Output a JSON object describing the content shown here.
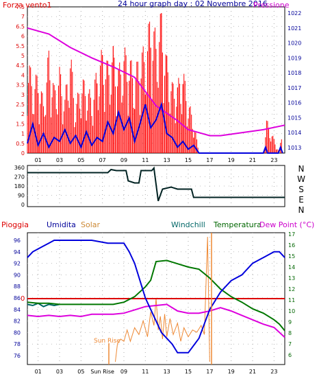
{
  "wind_pressure_chart": {
    "type": "line",
    "title": "24 hour graph day : 02 Novembre 2016",
    "left_label": "Forza vento1",
    "right_label": "Pressione",
    "left_ticks": [
      "7.5",
      "7",
      "6.5",
      "6",
      "5.5",
      "5",
      "4.5",
      "4",
      "3.5",
      "3",
      "2.5",
      "2",
      "1.5",
      "1",
      "0.5",
      "0"
    ],
    "right_ticks": [
      "1022",
      "1021",
      "1020",
      "1019",
      "1018",
      "1017",
      "1016",
      "1015",
      "1014",
      "1013"
    ],
    "x_ticks": [
      "01",
      "03",
      "05",
      "07",
      "09",
      "11",
      "13",
      "15",
      "17",
      "19",
      "21",
      "23"
    ],
    "colors": {
      "gust": "#ff0000",
      "wind": "#0000dd",
      "pressure": "#dd00dd"
    },
    "pressure": {
      "x": [
        0,
        2,
        4,
        6,
        8,
        10,
        12,
        14,
        15,
        16,
        17,
        18,
        20,
        22,
        24
      ],
      "y": [
        1021,
        1020.6,
        1019.7,
        1019.0,
        1018.4,
        1017.7,
        1015.8,
        1014.8,
        1014.2,
        1014.0,
        1013.8,
        1013.8,
        1014.0,
        1014.2,
        1014.5
      ]
    },
    "wind": {
      "x": [
        0,
        0.5,
        1,
        1.5,
        2,
        2.5,
        3,
        3.5,
        4,
        4.5,
        5,
        5.5,
        6,
        6.5,
        7,
        7.5,
        8,
        8.5,
        9,
        9.5,
        10,
        10.5,
        11,
        11.5,
        12,
        12.5,
        13,
        13.5,
        14,
        14.5,
        15,
        15.5,
        16,
        22,
        22.2,
        22.4,
        23.4,
        23.6,
        23.8
      ],
      "y": [
        0.5,
        1.5,
        0.4,
        1.0,
        0.3,
        0.8,
        0.6,
        1.2,
        0.5,
        0.9,
        0.3,
        1.1,
        0.4,
        0.8,
        0.6,
        1.6,
        1.0,
        2.1,
        1.2,
        1.8,
        0.6,
        1.5,
        2.5,
        1.3,
        1.7,
        2.5,
        1.0,
        0.8,
        0.3,
        0.6,
        0.2,
        0.4,
        0,
        0,
        0.3,
        0,
        0,
        0.3,
        0
      ]
    },
    "gust_max": {
      "x": [
        0,
        0.5,
        1,
        1.5,
        2,
        2.5,
        3,
        3.5,
        4,
        4.5,
        5,
        5.5,
        6,
        6.5,
        7,
        7.5,
        8,
        8.5,
        9,
        9.5,
        10,
        10.5,
        11,
        11.5,
        12,
        12.5,
        13,
        13.5,
        14,
        14.5,
        15,
        15.5,
        16,
        22,
        22.3,
        23.5,
        23.8
      ],
      "y": [
        5.5,
        3.7,
        4.3,
        2.8,
        5.5,
        3.5,
        4.5,
        3.0,
        5.5,
        2.5,
        4.0,
        3.7,
        3.0,
        4.5,
        5.5,
        4.8,
        5.5,
        4.5,
        5.5,
        5.2,
        4.2,
        5.5,
        5.5,
        7.5,
        6.2,
        7.5,
        5.0,
        3.7,
        3.7,
        4.5,
        2.8,
        1.8,
        0,
        0,
        1.8,
        0,
        1.8
      ]
    }
  },
  "direction_chart": {
    "type": "line",
    "y_ticks": [
      "360",
      "270",
      "180",
      "90",
      "0"
    ],
    "compass": [
      "N",
      "W",
      "S",
      "E",
      "N"
    ],
    "color": "#000000",
    "x": [
      0,
      7.5,
      7.8,
      8.3,
      9.2,
      9.4,
      10.0,
      10.4,
      10.6,
      11.6,
      11.8,
      12.2,
      12.6,
      13.4,
      14.0,
      15.3,
      15.5,
      24
    ],
    "y": [
      310,
      310,
      340,
      330,
      330,
      230,
      210,
      210,
      330,
      330,
      355,
      35,
      150,
      170,
      150,
      150,
      70,
      70
    ]
  },
  "temp_chart": {
    "type": "line",
    "labels": {
      "pioggia": "Pioggia",
      "umidita": "Umidita",
      "solar": "Solar",
      "windchill": "Windchill",
      "temperatura": "Temperatura",
      "dewpoint": "Dew Point (°C)"
    },
    "label_colors": {
      "pioggia": "#dd0000",
      "umidita": "#000099",
      "solar": "#cc8833",
      "windchill": "#006666",
      "temperatura": "#006600",
      "dewpoint": "#cc00cc"
    },
    "left_ticks": [
      "96",
      "94",
      "92",
      "90",
      "88",
      "86",
      "84",
      "82",
      "80",
      "78",
      "76"
    ],
    "right_ticks": [
      "17",
      "16",
      "15",
      "14",
      "13",
      "12",
      "11",
      "10",
      "9",
      "8",
      "7",
      "6"
    ],
    "x_ticks": [
      "01",
      "03",
      "05",
      "Sun Rise",
      "09",
      "11",
      "13",
      "15",
      "17",
      "19",
      "21",
      "23"
    ],
    "zero_label": "0",
    "sunrise_label": "Sun Rise",
    "humidity": {
      "x": [
        0,
        0.5,
        1.5,
        2,
        2.5,
        3,
        4,
        6,
        7.5,
        9,
        9.5,
        10,
        10.5,
        11,
        11.5,
        12,
        12.5,
        13,
        13.5,
        14,
        15,
        16,
        17,
        18,
        19,
        20,
        21,
        22,
        23,
        23.5,
        24
      ],
      "y": [
        93,
        94,
        95,
        95.5,
        96,
        96,
        96,
        96,
        95.5,
        95.5,
        94,
        92,
        89,
        86,
        84,
        82,
        80,
        79,
        78,
        76.5,
        76.5,
        79,
        84,
        87,
        89,
        90,
        92,
        93,
        94,
        94,
        93
      ]
    },
    "temperature": {
      "x": [
        0,
        1,
        2,
        3,
        4,
        5,
        6,
        7,
        8,
        9,
        10,
        11,
        11.5,
        12,
        13,
        14,
        15,
        16,
        17,
        18,
        19,
        20,
        21,
        22,
        23,
        23.5,
        24
      ],
      "y": [
        10.8,
        10.7,
        10.7,
        10.6,
        10.6,
        10.6,
        10.6,
        10.6,
        10.6,
        10.8,
        11.3,
        12.2,
        12.8,
        14.5,
        14.6,
        14.3,
        14.0,
        13.8,
        13.0,
        12.0,
        11.3,
        10.8,
        10.2,
        9.8,
        9.2,
        8.8,
        8.2
      ]
    },
    "dewpoint": {
      "x": [
        0,
        1,
        2,
        3,
        4,
        5,
        6,
        7,
        8,
        9,
        10,
        11,
        12,
        13,
        14,
        15,
        16,
        17,
        18,
        19,
        20,
        21,
        22,
        23,
        24
      ],
      "y": [
        9.6,
        9.5,
        9.6,
        9.5,
        9.6,
        9.5,
        9.7,
        9.7,
        9.7,
        9.8,
        10.1,
        10.4,
        10.5,
        10.6,
        10.0,
        9.8,
        9.8,
        10.0,
        10.3,
        10.0,
        9.6,
        9.2,
        8.8,
        8.5,
        7.6
      ]
    },
    "windchill_x": [
      0,
      0.5,
      1,
      1.5,
      2,
      2.5,
      3
    ],
    "windchill_y": [
      10.6,
      10.5,
      10.7,
      10.4,
      10.6,
      10.5,
      10.6
    ],
    "solar": {
      "x": [
        8.2,
        8.4,
        8.7,
        9.0,
        9.3,
        9.6,
        10,
        10.4,
        10.8,
        11.2,
        11.5,
        11.8,
        12,
        12.2,
        12.4,
        12.6,
        12.8,
        13,
        13.3,
        13.6,
        14,
        14.3,
        14.6,
        15,
        15.4,
        15.8,
        16.2,
        16.5,
        16.8,
        17
      ],
      "y": [
        0,
        8,
        10,
        9,
        14,
        9,
        15,
        12,
        18,
        11,
        22,
        16,
        28,
        14,
        20,
        10,
        21,
        11,
        19,
        12,
        17,
        9,
        15,
        11,
        14,
        13,
        16,
        12,
        55,
        0
      ]
    },
    "rain_zero": 0,
    "colors": {
      "humidity": "#0000dd",
      "temperature": "#007700",
      "dewpoint": "#dd00dd",
      "solar": "#ee8833",
      "rain": "#dd0000",
      "windchill": "#006666"
    }
  }
}
